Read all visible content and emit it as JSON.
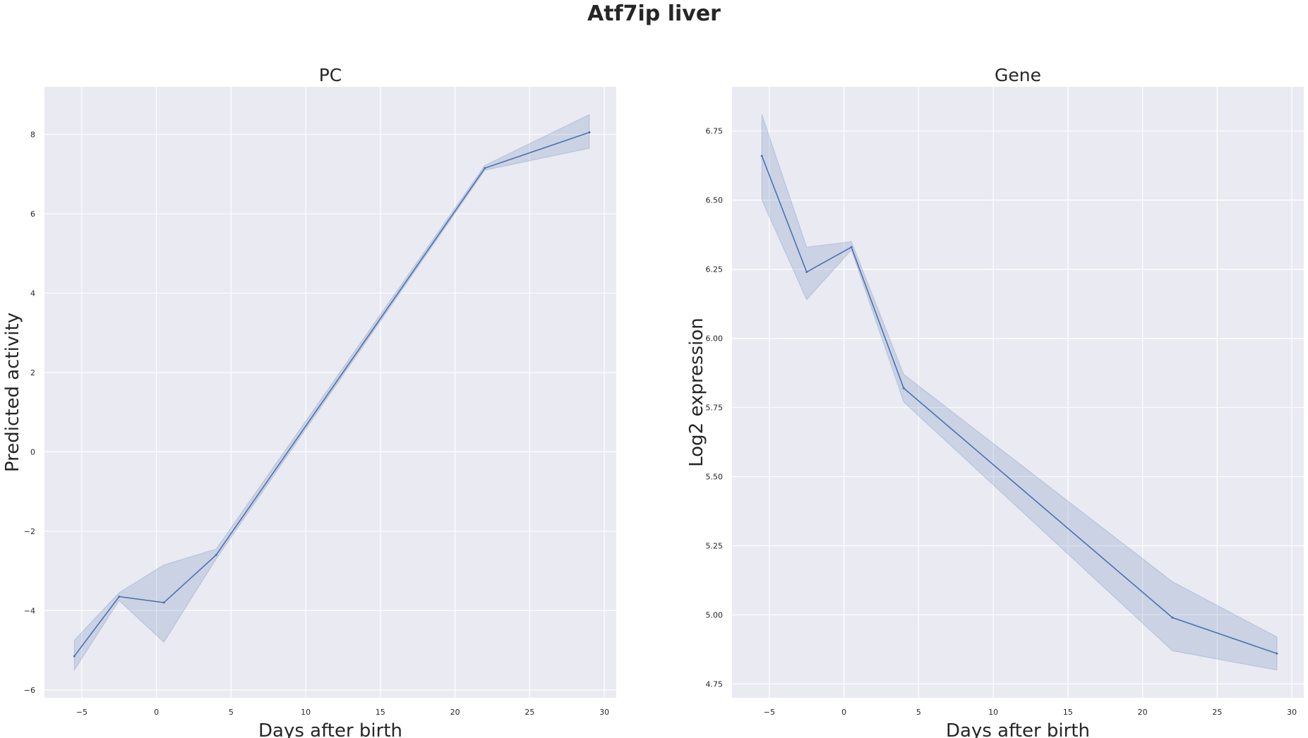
{
  "figure": {
    "title": "Atf7ip liver"
  },
  "chart_data": [
    {
      "type": "line",
      "title": "PC",
      "xlabel": "Days after birth",
      "ylabel": "Predicted activity",
      "xlim": [
        -7.5,
        30.8
      ],
      "ylim": [
        -6.2,
        9.2
      ],
      "xticks": [
        -5,
        0,
        5,
        10,
        15,
        20,
        25,
        30
      ],
      "yticks": [
        -6,
        -4,
        -2,
        0,
        2,
        4,
        6,
        8
      ],
      "xtick_labels": [
        "−5",
        "0",
        "5",
        "10",
        "15",
        "20",
        "25",
        "30"
      ],
      "ytick_labels": [
        "−6",
        "−4",
        "−2",
        "0",
        "2",
        "4",
        "6",
        "8"
      ],
      "grid": true,
      "color": "#4c72b0",
      "x": [
        -5.5,
        -2.5,
        0.5,
        4,
        22,
        29
      ],
      "y": [
        -5.15,
        -3.65,
        -3.8,
        -2.6,
        7.15,
        8.05
      ],
      "ci_lower": [
        -5.5,
        -3.75,
        -4.8,
        -2.7,
        7.1,
        7.65
      ],
      "ci_upper": [
        -4.75,
        -3.55,
        -2.85,
        -2.45,
        7.22,
        8.5
      ]
    },
    {
      "type": "line",
      "title": "Gene",
      "xlabel": "Days after birth",
      "ylabel": "Log2 expression",
      "xlim": [
        -7.5,
        30.8
      ],
      "ylim": [
        4.7,
        6.91
      ],
      "xticks": [
        -5,
        0,
        5,
        10,
        15,
        20,
        25,
        30
      ],
      "yticks": [
        4.75,
        5.0,
        5.25,
        5.5,
        5.75,
        6.0,
        6.25,
        6.5,
        6.75
      ],
      "xtick_labels": [
        "−5",
        "0",
        "5",
        "10",
        "15",
        "20",
        "25",
        "30"
      ],
      "ytick_labels": [
        "4.75",
        "5.00",
        "5.25",
        "5.50",
        "5.75",
        "6.00",
        "6.25",
        "6.50",
        "6.75"
      ],
      "grid": true,
      "color": "#4c72b0",
      "x": [
        -5.5,
        -2.5,
        0.5,
        4,
        22,
        29
      ],
      "y": [
        6.66,
        6.24,
        6.33,
        5.82,
        4.99,
        4.86
      ],
      "ci_lower": [
        6.5,
        6.14,
        6.32,
        5.77,
        4.87,
        4.8
      ],
      "ci_upper": [
        6.81,
        6.33,
        6.35,
        5.87,
        5.12,
        4.92
      ]
    }
  ]
}
